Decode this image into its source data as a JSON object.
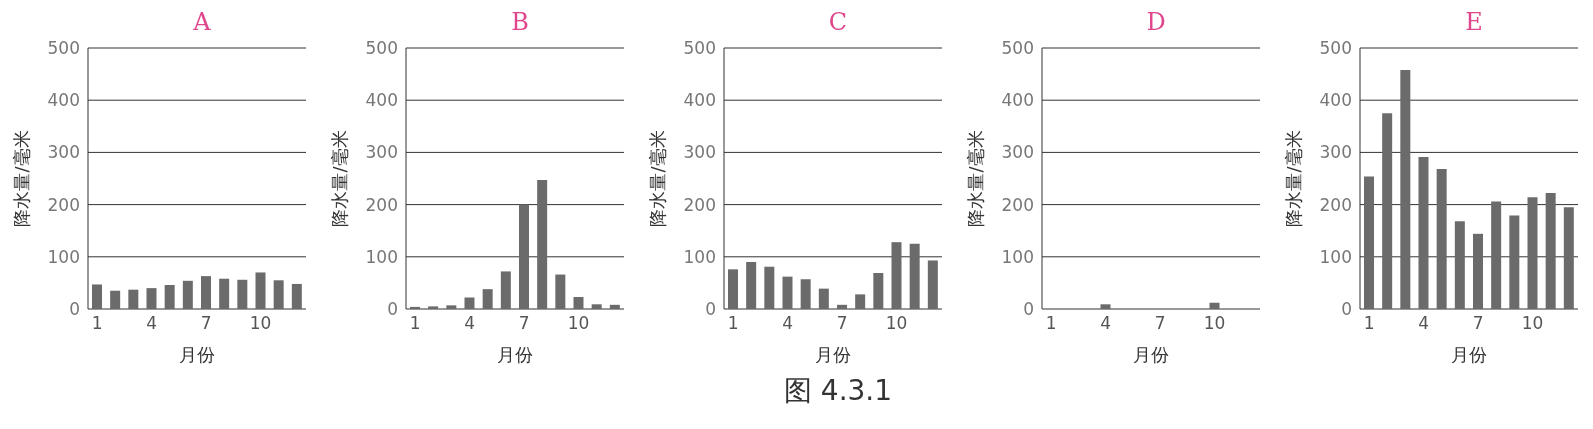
{
  "chart_data": [
    {
      "type": "bar",
      "title": "A",
      "xlabel": "月份",
      "ylabel": "降水量/毫米",
      "categories": [
        "1",
        null,
        null,
        "4",
        null,
        null,
        "7",
        null,
        null,
        "10",
        null,
        null
      ],
      "values": [
        47,
        35,
        37,
        40,
        46,
        54,
        63,
        58,
        56,
        70,
        55,
        48
      ],
      "color": "#6b6b6b",
      "ylim": [
        0,
        500
      ],
      "yticks": [
        0,
        100,
        200,
        300,
        400,
        500
      ],
      "grid": "y"
    },
    {
      "type": "bar",
      "title": "B",
      "xlabel": "月份",
      "ylabel": "降水量/毫米",
      "categories": [
        "1",
        null,
        null,
        "4",
        null,
        null,
        "7",
        null,
        null,
        "10",
        null,
        null
      ],
      "values": [
        4,
        5,
        7,
        22,
        38,
        72,
        200,
        247,
        66,
        23,
        9,
        8
      ],
      "color": "#6b6b6b",
      "ylim": [
        0,
        500
      ],
      "yticks": [
        0,
        100,
        200,
        300,
        400,
        500
      ],
      "grid": "y"
    },
    {
      "type": "bar",
      "title": "C",
      "xlabel": "月份",
      "ylabel": "降水量/毫米",
      "categories": [
        "1",
        null,
        null,
        "4",
        null,
        null,
        "7",
        null,
        null,
        "10",
        null,
        null
      ],
      "values": [
        76,
        90,
        81,
        62,
        57,
        39,
        8,
        28,
        69,
        128,
        125,
        93
      ],
      "color": "#6b6b6b",
      "ylim": [
        0,
        500
      ],
      "yticks": [
        0,
        100,
        200,
        300,
        400,
        500
      ],
      "grid": "y",
      "annotations": [
        "图 4.3.1"
      ]
    },
    {
      "type": "bar",
      "title": "D",
      "xlabel": "月份",
      "ylabel": "降水量/毫米",
      "categories": [
        "1",
        null,
        null,
        "4",
        null,
        null,
        "7",
        null,
        null,
        "10",
        null,
        null
      ],
      "values": [
        0,
        0,
        0,
        9,
        0,
        0,
        0,
        0,
        0,
        12,
        0,
        0
      ],
      "color": "#6b6b6b",
      "ylim": [
        0,
        500
      ],
      "yticks": [
        0,
        100,
        200,
        300,
        400,
        500
      ],
      "grid": "y"
    },
    {
      "type": "bar",
      "title": "E",
      "xlabel": "月份",
      "ylabel": "降水量/毫米",
      "categories": [
        "1",
        null,
        null,
        "4",
        null,
        null,
        "7",
        null,
        null,
        "10",
        null,
        null
      ],
      "values": [
        254,
        375,
        458,
        291,
        268,
        168,
        144,
        206,
        179,
        214,
        222,
        195
      ],
      "color": "#6b6b6b",
      "ylim": [
        0,
        500
      ],
      "yticks": [
        0,
        100,
        200,
        300,
        400,
        500
      ],
      "grid": "y"
    }
  ]
}
